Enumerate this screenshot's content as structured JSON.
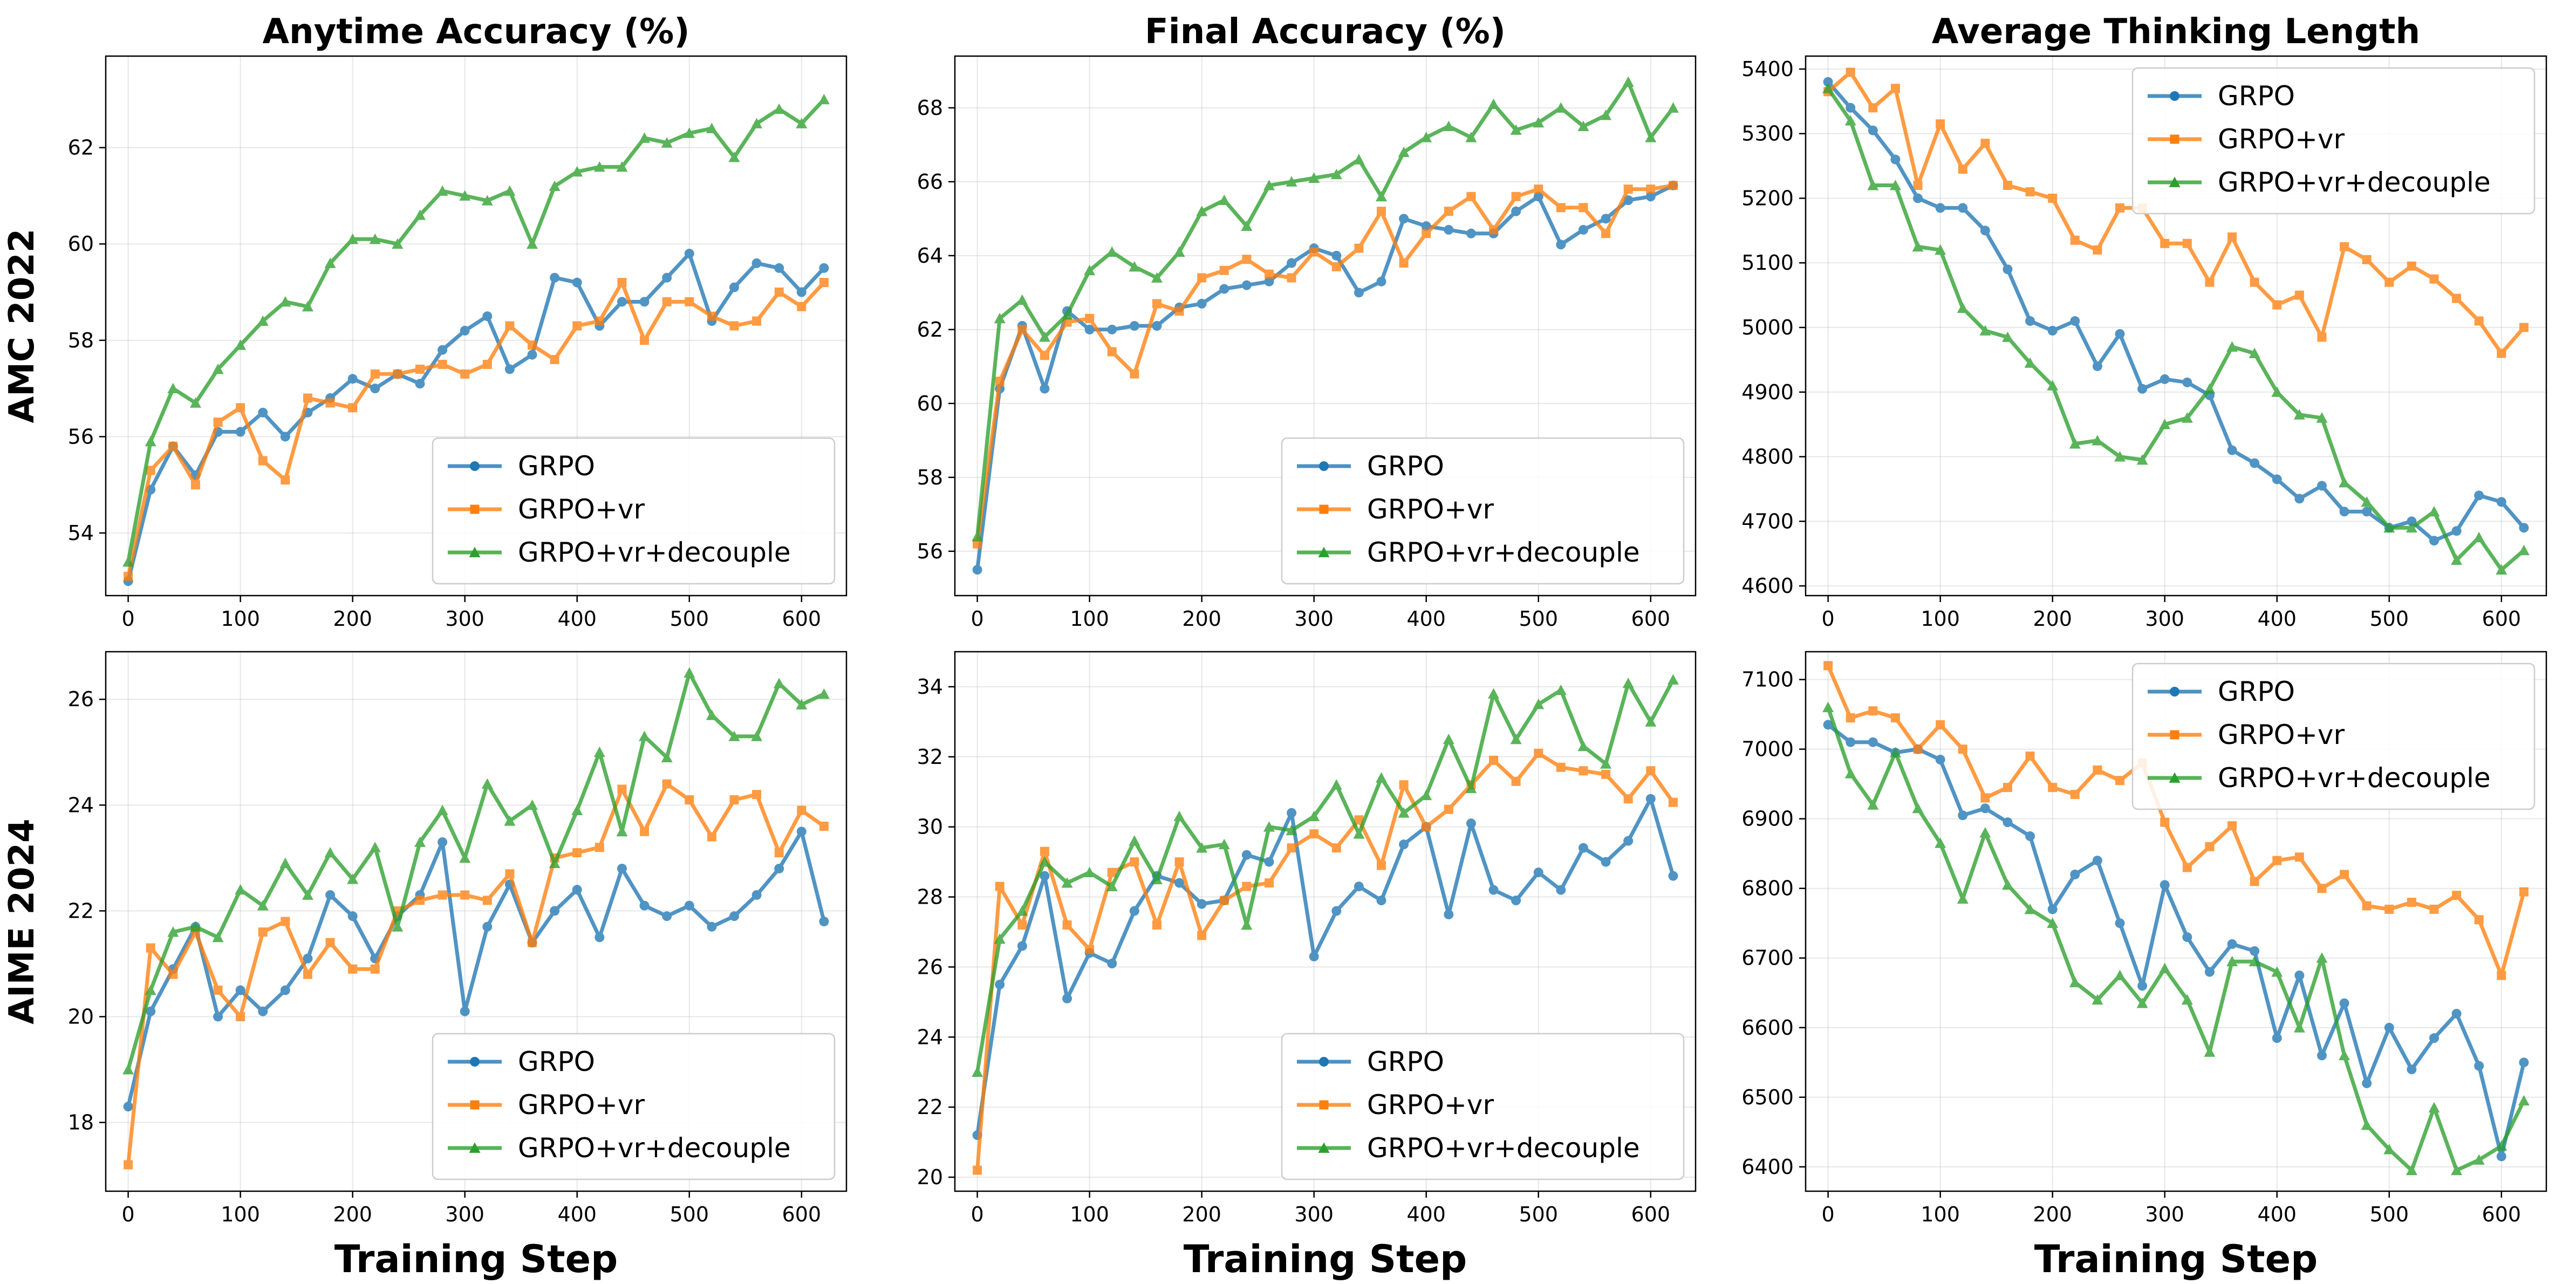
{
  "figure": {
    "colors": {
      "GRPO": "#1f77b4",
      "GRPO+vr": "#ff7f0e",
      "GRPO+vr+decouple": "#2ca02c"
    },
    "markers": {
      "GRPO": "circle",
      "GRPO+vr": "square",
      "GRPO+vr+decouple": "triangle"
    },
    "column_titles": [
      "Anytime Accuracy (%)",
      "Final Accuracy (%)",
      "Average Thinking Length"
    ],
    "row_labels": [
      "AMC 2022",
      "AIME 2024"
    ],
    "xlabel": "Training Step",
    "grid": true
  },
  "chart_data": [
    {
      "type": "line",
      "title": "Anytime Accuracy (%)",
      "row_label": "AMC 2022",
      "xlabel": "",
      "xlim": [
        -20,
        640
      ],
      "ylim": [
        52.7,
        63.9
      ],
      "xticks": [
        0,
        100,
        200,
        300,
        400,
        500,
        600
      ],
      "yticks": [
        54,
        56,
        58,
        60,
        62
      ],
      "legend": "lower-right",
      "x": [
        0,
        20,
        40,
        60,
        80,
        100,
        120,
        140,
        160,
        180,
        200,
        220,
        240,
        260,
        280,
        300,
        320,
        340,
        360,
        380,
        400,
        420,
        440,
        460,
        480,
        500,
        520,
        540,
        560,
        580,
        600,
        620
      ],
      "series": [
        {
          "name": "GRPO",
          "values": [
            53.0,
            54.9,
            55.8,
            55.2,
            56.1,
            56.1,
            56.5,
            56.0,
            56.5,
            56.8,
            57.2,
            57.0,
            57.3,
            57.1,
            57.8,
            58.2,
            58.5,
            57.4,
            57.7,
            59.3,
            59.2,
            58.3,
            58.8,
            58.8,
            59.3,
            59.8,
            58.4,
            59.1,
            59.6,
            59.5,
            59.0,
            59.5
          ]
        },
        {
          "name": "GRPO+vr",
          "values": [
            53.1,
            55.3,
            55.8,
            55.0,
            56.3,
            56.6,
            55.5,
            55.1,
            56.8,
            56.7,
            56.6,
            57.3,
            57.3,
            57.4,
            57.5,
            57.3,
            57.5,
            58.3,
            57.9,
            57.6,
            58.3,
            58.4,
            59.2,
            58.0,
            58.8,
            58.8,
            58.5,
            58.3,
            58.4,
            59.0,
            58.7,
            59.2
          ]
        },
        {
          "name": "GRPO+vr+decouple",
          "values": [
            53.4,
            55.9,
            57.0,
            56.7,
            57.4,
            57.9,
            58.4,
            58.8,
            58.7,
            59.6,
            60.1,
            60.1,
            60.0,
            60.6,
            61.1,
            61.0,
            60.9,
            61.1,
            60.0,
            61.2,
            61.5,
            61.6,
            61.6,
            62.2,
            62.1,
            62.3,
            62.4,
            61.8,
            62.5,
            62.8,
            62.5,
            63.0
          ]
        }
      ]
    },
    {
      "type": "line",
      "title": "Final Accuracy (%)",
      "row_label": "",
      "xlabel": "",
      "xlim": [
        -20,
        640
      ],
      "ylim": [
        54.8,
        69.4
      ],
      "xticks": [
        0,
        100,
        200,
        300,
        400,
        500,
        600
      ],
      "yticks": [
        56,
        58,
        60,
        62,
        64,
        66,
        68
      ],
      "legend": "lower-right",
      "x": [
        0,
        20,
        40,
        60,
        80,
        100,
        120,
        140,
        160,
        180,
        200,
        220,
        240,
        260,
        280,
        300,
        320,
        340,
        360,
        380,
        400,
        420,
        440,
        460,
        480,
        500,
        520,
        540,
        560,
        580,
        600,
        620
      ],
      "series": [
        {
          "name": "GRPO",
          "values": [
            55.5,
            60.4,
            62.1,
            60.4,
            62.5,
            62.0,
            62.0,
            62.1,
            62.1,
            62.6,
            62.7,
            63.1,
            63.2,
            63.3,
            63.8,
            64.2,
            64.0,
            63.0,
            63.3,
            65.0,
            64.8,
            64.7,
            64.6,
            64.6,
            65.2,
            65.6,
            64.3,
            64.7,
            65.0,
            65.5,
            65.6,
            65.9
          ]
        },
        {
          "name": "GRPO+vr",
          "values": [
            56.2,
            60.6,
            62.0,
            61.3,
            62.2,
            62.3,
            61.4,
            60.8,
            62.7,
            62.5,
            63.4,
            63.6,
            63.9,
            63.5,
            63.4,
            64.1,
            63.7,
            64.2,
            65.2,
            63.8,
            64.6,
            65.2,
            65.6,
            64.7,
            65.6,
            65.8,
            65.3,
            65.3,
            64.6,
            65.8,
            65.8,
            65.9
          ]
        },
        {
          "name": "GRPO+vr+decouple",
          "values": [
            56.4,
            62.3,
            62.8,
            61.8,
            62.4,
            63.6,
            64.1,
            63.7,
            63.4,
            64.1,
            65.2,
            65.5,
            64.8,
            65.9,
            66.0,
            66.1,
            66.2,
            66.6,
            65.6,
            66.8,
            67.2,
            67.5,
            67.2,
            68.1,
            67.4,
            67.6,
            68.0,
            67.5,
            67.8,
            68.7,
            67.2,
            68.0
          ]
        }
      ]
    },
    {
      "type": "line",
      "title": "Average Thinking Length",
      "row_label": "",
      "xlabel": "",
      "xlim": [
        -20,
        640
      ],
      "ylim": [
        4585,
        5420
      ],
      "xticks": [
        0,
        100,
        200,
        300,
        400,
        500,
        600
      ],
      "yticks": [
        4600,
        4700,
        4800,
        4900,
        5000,
        5100,
        5200,
        5300,
        5400
      ],
      "legend": "upper-right",
      "x": [
        0,
        20,
        40,
        60,
        80,
        100,
        120,
        140,
        160,
        180,
        200,
        220,
        240,
        260,
        280,
        300,
        320,
        340,
        360,
        380,
        400,
        420,
        440,
        460,
        480,
        500,
        520,
        540,
        560,
        580,
        600,
        620
      ],
      "series": [
        {
          "name": "GRPO",
          "values": [
            5380,
            5340,
            5305,
            5260,
            5200,
            5185,
            5185,
            5150,
            5090,
            5010,
            4995,
            5010,
            4940,
            4990,
            4905,
            4920,
            4915,
            4895,
            4810,
            4790,
            4765,
            4735,
            4755,
            4715,
            4715,
            4690,
            4700,
            4670,
            4685,
            4740,
            4730,
            4690
          ]
        },
        {
          "name": "GRPO+vr",
          "values": [
            5365,
            5395,
            5340,
            5370,
            5220,
            5315,
            5245,
            5285,
            5220,
            5210,
            5200,
            5135,
            5120,
            5185,
            5185,
            5130,
            5130,
            5070,
            5140,
            5070,
            5035,
            5050,
            4985,
            5125,
            5105,
            5070,
            5095,
            5075,
            5045,
            5010,
            4960,
            5000
          ]
        },
        {
          "name": "GRPO+vr+decouple",
          "values": [
            5370,
            5320,
            5220,
            5220,
            5125,
            5120,
            5030,
            4995,
            4985,
            4945,
            4910,
            4820,
            4825,
            4800,
            4795,
            4850,
            4860,
            4905,
            4970,
            4960,
            4900,
            4865,
            4860,
            4760,
            4730,
            4690,
            4690,
            4715,
            4640,
            4675,
            4625,
            4655
          ]
        }
      ]
    },
    {
      "type": "line",
      "title": "",
      "row_label": "AIME 2024",
      "xlabel": "Training Step",
      "xlim": [
        -20,
        640
      ],
      "ylim": [
        16.7,
        26.9
      ],
      "xticks": [
        0,
        100,
        200,
        300,
        400,
        500,
        600
      ],
      "yticks": [
        18,
        20,
        22,
        24,
        26
      ],
      "legend": "lower-right",
      "x": [
        0,
        20,
        40,
        60,
        80,
        100,
        120,
        140,
        160,
        180,
        200,
        220,
        240,
        260,
        280,
        300,
        320,
        340,
        360,
        380,
        400,
        420,
        440,
        460,
        480,
        500,
        520,
        540,
        560,
        580,
        600,
        620
      ],
      "series": [
        {
          "name": "GRPO",
          "values": [
            18.3,
            20.1,
            20.9,
            21.7,
            20.0,
            20.5,
            20.1,
            20.5,
            21.1,
            22.3,
            21.9,
            21.1,
            21.9,
            22.3,
            23.3,
            20.1,
            21.7,
            22.5,
            21.4,
            22.0,
            22.4,
            21.5,
            22.8,
            22.1,
            21.9,
            22.1,
            21.7,
            21.9,
            22.3,
            22.8,
            23.5,
            21.8
          ]
        },
        {
          "name": "GRPO+vr",
          "values": [
            17.2,
            21.3,
            20.8,
            21.6,
            20.5,
            20.0,
            21.6,
            21.8,
            20.8,
            21.4,
            20.9,
            20.9,
            22.0,
            22.2,
            22.3,
            22.3,
            22.2,
            22.7,
            21.4,
            23.0,
            23.1,
            23.2,
            24.3,
            23.5,
            24.4,
            24.1,
            23.4,
            24.1,
            24.2,
            23.1,
            23.9,
            23.6
          ]
        },
        {
          "name": "GRPO+vr+decouple",
          "values": [
            19.0,
            20.5,
            21.6,
            21.7,
            21.5,
            22.4,
            22.1,
            22.9,
            22.3,
            23.1,
            22.6,
            23.2,
            21.7,
            23.3,
            23.9,
            23.0,
            24.4,
            23.7,
            24.0,
            22.9,
            23.9,
            25.0,
            23.5,
            25.3,
            24.9,
            26.5,
            25.7,
            25.3,
            25.3,
            26.3,
            25.9,
            26.1
          ]
        }
      ]
    },
    {
      "type": "line",
      "title": "",
      "row_label": "",
      "xlabel": "Training Step",
      "xlim": [
        -20,
        640
      ],
      "ylim": [
        19.6,
        35.0
      ],
      "xticks": [
        0,
        100,
        200,
        300,
        400,
        500,
        600
      ],
      "yticks": [
        20,
        22,
        24,
        26,
        28,
        30,
        32,
        34
      ],
      "legend": "lower-right",
      "x": [
        0,
        20,
        40,
        60,
        80,
        100,
        120,
        140,
        160,
        180,
        200,
        220,
        240,
        260,
        280,
        300,
        320,
        340,
        360,
        380,
        400,
        420,
        440,
        460,
        480,
        500,
        520,
        540,
        560,
        580,
        600,
        620
      ],
      "series": [
        {
          "name": "GRPO",
          "values": [
            21.2,
            25.5,
            26.6,
            28.6,
            25.1,
            26.4,
            26.1,
            27.6,
            28.6,
            28.4,
            27.8,
            27.9,
            29.2,
            29.0,
            30.4,
            26.3,
            27.6,
            28.3,
            27.9,
            29.5,
            30.0,
            27.5,
            30.1,
            28.2,
            27.9,
            28.7,
            28.2,
            29.4,
            29.0,
            29.6,
            30.8,
            28.6
          ]
        },
        {
          "name": "GRPO+vr",
          "values": [
            20.2,
            28.3,
            27.2,
            29.3,
            27.2,
            26.5,
            28.7,
            29.0,
            27.2,
            29.0,
            26.9,
            27.9,
            28.3,
            28.4,
            29.4,
            29.8,
            29.4,
            30.2,
            28.9,
            31.2,
            30.0,
            30.5,
            31.2,
            31.9,
            31.3,
            32.1,
            31.7,
            31.6,
            31.5,
            30.8,
            31.6,
            30.7
          ]
        },
        {
          "name": "GRPO+vr+decouple",
          "values": [
            23.0,
            26.8,
            27.6,
            29.0,
            28.4,
            28.7,
            28.3,
            29.6,
            28.5,
            30.3,
            29.4,
            29.5,
            27.2,
            30.0,
            29.9,
            30.3,
            31.2,
            29.8,
            31.4,
            30.4,
            30.9,
            32.5,
            31.1,
            33.8,
            32.5,
            33.5,
            33.9,
            32.3,
            31.8,
            34.1,
            33.0,
            34.2
          ]
        }
      ]
    },
    {
      "type": "line",
      "title": "",
      "row_label": "",
      "xlabel": "Training Step",
      "xlim": [
        -20,
        640
      ],
      "ylim": [
        6365,
        7140
      ],
      "xticks": [
        0,
        100,
        200,
        300,
        400,
        500,
        600
      ],
      "yticks": [
        6400,
        6500,
        6600,
        6700,
        6800,
        6900,
        7000,
        7100
      ],
      "legend": "upper-right",
      "x": [
        0,
        20,
        40,
        60,
        80,
        100,
        120,
        140,
        160,
        180,
        200,
        220,
        240,
        260,
        280,
        300,
        320,
        340,
        360,
        380,
        400,
        420,
        440,
        460,
        480,
        500,
        520,
        540,
        560,
        580,
        600,
        620
      ],
      "series": [
        {
          "name": "GRPO",
          "values": [
            7035,
            7010,
            7010,
            6995,
            7000,
            6985,
            6905,
            6915,
            6895,
            6875,
            6770,
            6820,
            6840,
            6750,
            6660,
            6805,
            6730,
            6680,
            6720,
            6710,
            6585,
            6675,
            6560,
            6635,
            6520,
            6600,
            6540,
            6585,
            6620,
            6545,
            6415,
            6550
          ]
        },
        {
          "name": "GRPO+vr",
          "values": [
            7120,
            7045,
            7055,
            7045,
            7000,
            7035,
            7000,
            6930,
            6945,
            6990,
            6945,
            6935,
            6970,
            6955,
            6980,
            6895,
            6830,
            6860,
            6890,
            6810,
            6840,
            6845,
            6800,
            6820,
            6775,
            6770,
            6780,
            6770,
            6790,
            6755,
            6675,
            6795
          ]
        },
        {
          "name": "GRPO+vr+decouple",
          "values": [
            7060,
            6965,
            6920,
            6995,
            6915,
            6865,
            6785,
            6880,
            6805,
            6770,
            6750,
            6665,
            6640,
            6675,
            6635,
            6685,
            6640,
            6565,
            6695,
            6695,
            6680,
            6600,
            6700,
            6560,
            6460,
            6425,
            6395,
            6485,
            6395,
            6410,
            6430,
            6495
          ]
        }
      ]
    }
  ]
}
